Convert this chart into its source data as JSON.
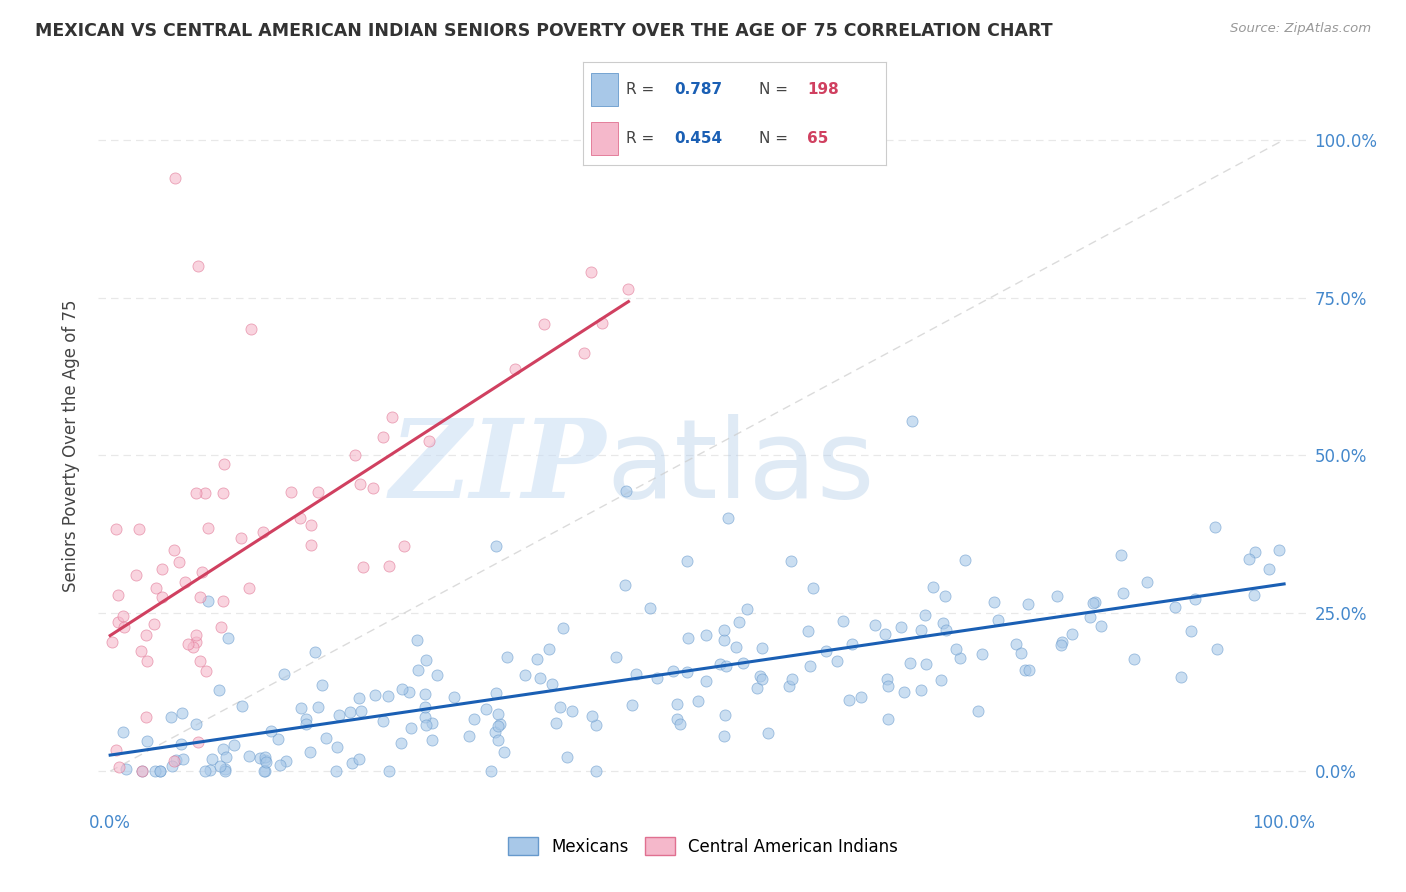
{
  "title": "MEXICAN VS CENTRAL AMERICAN INDIAN SENIORS POVERTY OVER THE AGE OF 75 CORRELATION CHART",
  "source": "Source: ZipAtlas.com",
  "ylabel": "Seniors Poverty Over the Age of 75",
  "ytick_labels": [
    "0.0%",
    "25.0%",
    "50.0%",
    "75.0%",
    "100.0%"
  ],
  "ytick_values": [
    0.0,
    0.25,
    0.5,
    0.75,
    1.0
  ],
  "xtick_labels": [
    "0.0%",
    "",
    "",
    "",
    "",
    "",
    "",
    "",
    "",
    "",
    "100.0%"
  ],
  "xtick_values": [
    0.0,
    0.1,
    0.2,
    0.3,
    0.4,
    0.5,
    0.6,
    0.7,
    0.8,
    0.9,
    1.0
  ],
  "xlim": [
    -0.01,
    1.02
  ],
  "ylim": [
    -0.05,
    1.08
  ],
  "mexicans_color": "#a8c8e8",
  "mexicans_edge": "#6699cc",
  "central_american_color": "#f5b8cb",
  "central_american_edge": "#e07090",
  "regression_mexican_color": "#1a5fb4",
  "regression_central_color": "#d04060",
  "diagonal_color": "#cccccc",
  "R_mexican": 0.787,
  "N_mexican": 198,
  "R_central": 0.454,
  "N_central": 65,
  "watermark_zip": "ZIP",
  "watermark_atlas": "atlas",
  "background_color": "#ffffff",
  "grid_color": "#e8e8e8",
  "title_color": "#333333",
  "source_color": "#999999",
  "text_color": "#333333",
  "R_value_color": "#1a5fb4",
  "N_value_color": "#d04060",
  "axis_tick_color": "#4488cc",
  "marker_size": 8,
  "alpha_scatter": 0.6,
  "seed": 99,
  "legend_box_color": "#f5b8cb",
  "legend_box_color2": "#a8c8e8"
}
